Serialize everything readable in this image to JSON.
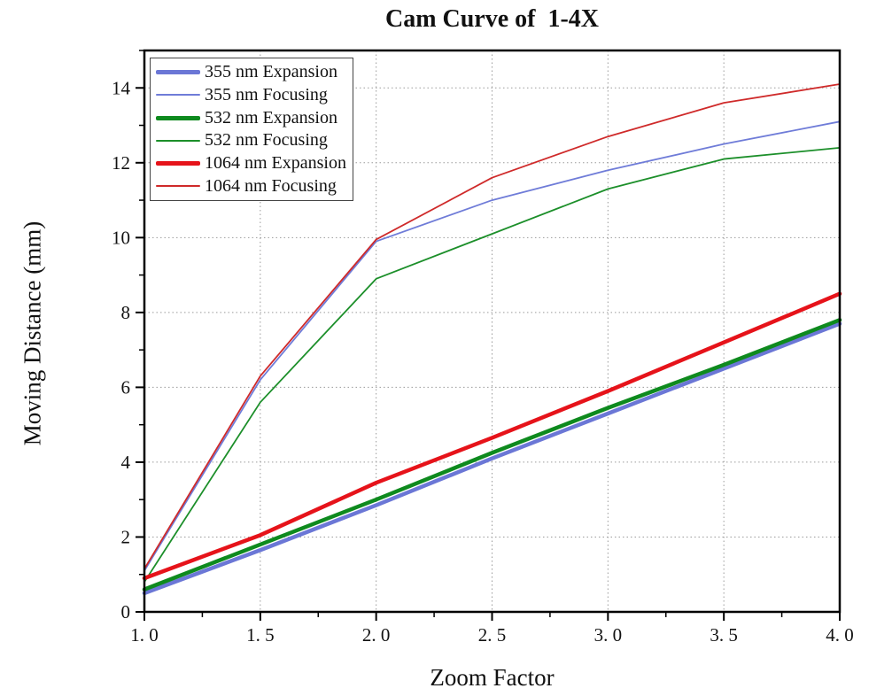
{
  "title": "Cam Curve of  1-4X",
  "chart_data": {
    "type": "line",
    "title": "Cam Curve of  1-4X",
    "xlabel": "Zoom Factor",
    "ylabel": "Moving Distance (mm)",
    "xlim": [
      1.0,
      4.0
    ],
    "ylim": [
      0,
      15
    ],
    "x_major_ticks": [
      1.0,
      1.5,
      2.0,
      2.5,
      3.0,
      3.5,
      4.0
    ],
    "x_tick_labels": [
      "1. 0",
      "1. 5",
      "2. 0",
      "2. 5",
      "3. 0",
      "3. 5",
      "4. 0"
    ],
    "x_minor_ticks": [
      1.25,
      1.75,
      2.25,
      2.75,
      3.25,
      3.75
    ],
    "y_major_ticks": [
      0,
      2,
      4,
      6,
      8,
      10,
      12,
      14
    ],
    "y_tick_labels": [
      "0",
      "2",
      "4",
      "6",
      "8",
      "10",
      "12",
      "14"
    ],
    "y_minor_ticks": [
      1,
      3,
      5,
      7,
      9,
      11,
      13,
      15
    ],
    "grid": "dotted",
    "grid_color": "#9a9a9a",
    "legend_position": "top-left",
    "x": [
      1.0,
      1.5,
      2.0,
      2.5,
      3.0,
      3.5,
      4.0
    ],
    "series": [
      {
        "name": "355 nm Expansion",
        "color": "#6b77d6",
        "width": 4.5,
        "values": [
          0.5,
          1.65,
          2.85,
          4.1,
          5.3,
          6.5,
          7.7
        ]
      },
      {
        "name": "355 nm Focusing",
        "color": "#6f7cd8",
        "width": 1.8,
        "values": [
          1.1,
          6.2,
          9.9,
          11.0,
          11.8,
          12.5,
          13.1
        ]
      },
      {
        "name": "532 nm Expansion",
        "color": "#0e8a1e",
        "width": 4.5,
        "values": [
          0.6,
          1.8,
          3.0,
          4.25,
          5.45,
          6.6,
          7.8
        ]
      },
      {
        "name": "532 nm Focusing",
        "color": "#1c8f2a",
        "width": 1.8,
        "values": [
          0.8,
          5.6,
          8.9,
          10.1,
          11.3,
          12.1,
          12.4
        ]
      },
      {
        "name": "1064 nm Expansion",
        "color": "#e6131a",
        "width": 4.5,
        "values": [
          0.9,
          2.05,
          3.45,
          4.65,
          5.9,
          7.2,
          8.5
        ]
      },
      {
        "name": "1064 nm Focusing",
        "color": "#cf2a2a",
        "width": 1.8,
        "values": [
          1.15,
          6.3,
          9.95,
          11.6,
          12.7,
          13.6,
          14.1
        ]
      }
    ]
  }
}
